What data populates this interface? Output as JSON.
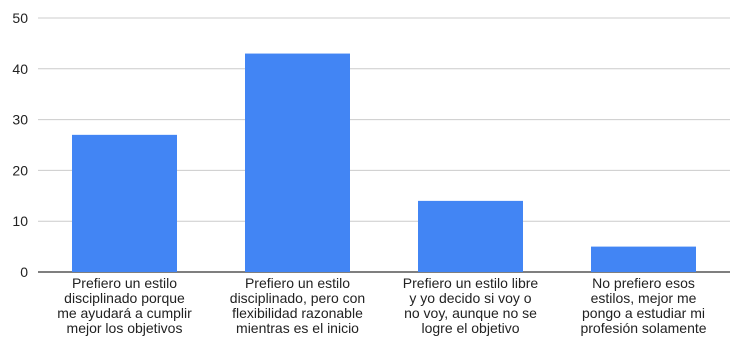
{
  "chart_data": {
    "type": "bar",
    "title": "",
    "xlabel": "",
    "ylabel": "",
    "ylim": [
      0,
      50
    ],
    "yticks": [
      0,
      10,
      20,
      30,
      40,
      50
    ],
    "grid": true,
    "legend": "none",
    "bar_color": "#4285f4",
    "categories": [
      [
        "Prefiero un estilo",
        "disciplinado porque",
        "me ayudará a cumplir",
        "mejor los objetivos"
      ],
      [
        "Prefiero un estilo",
        "disciplinado, pero con",
        "flexibilidad razonable",
        "mientras es el inicio"
      ],
      [
        "Prefiero un estilo libre",
        "y yo decido si voy o",
        "no voy, aunque no se",
        "logre el objetivo"
      ],
      [
        "No prefiero esos",
        "estilos, mejor me",
        "pongo a estudiar mi",
        "profesión solamente"
      ]
    ],
    "values": [
      27,
      43,
      14,
      5
    ]
  }
}
